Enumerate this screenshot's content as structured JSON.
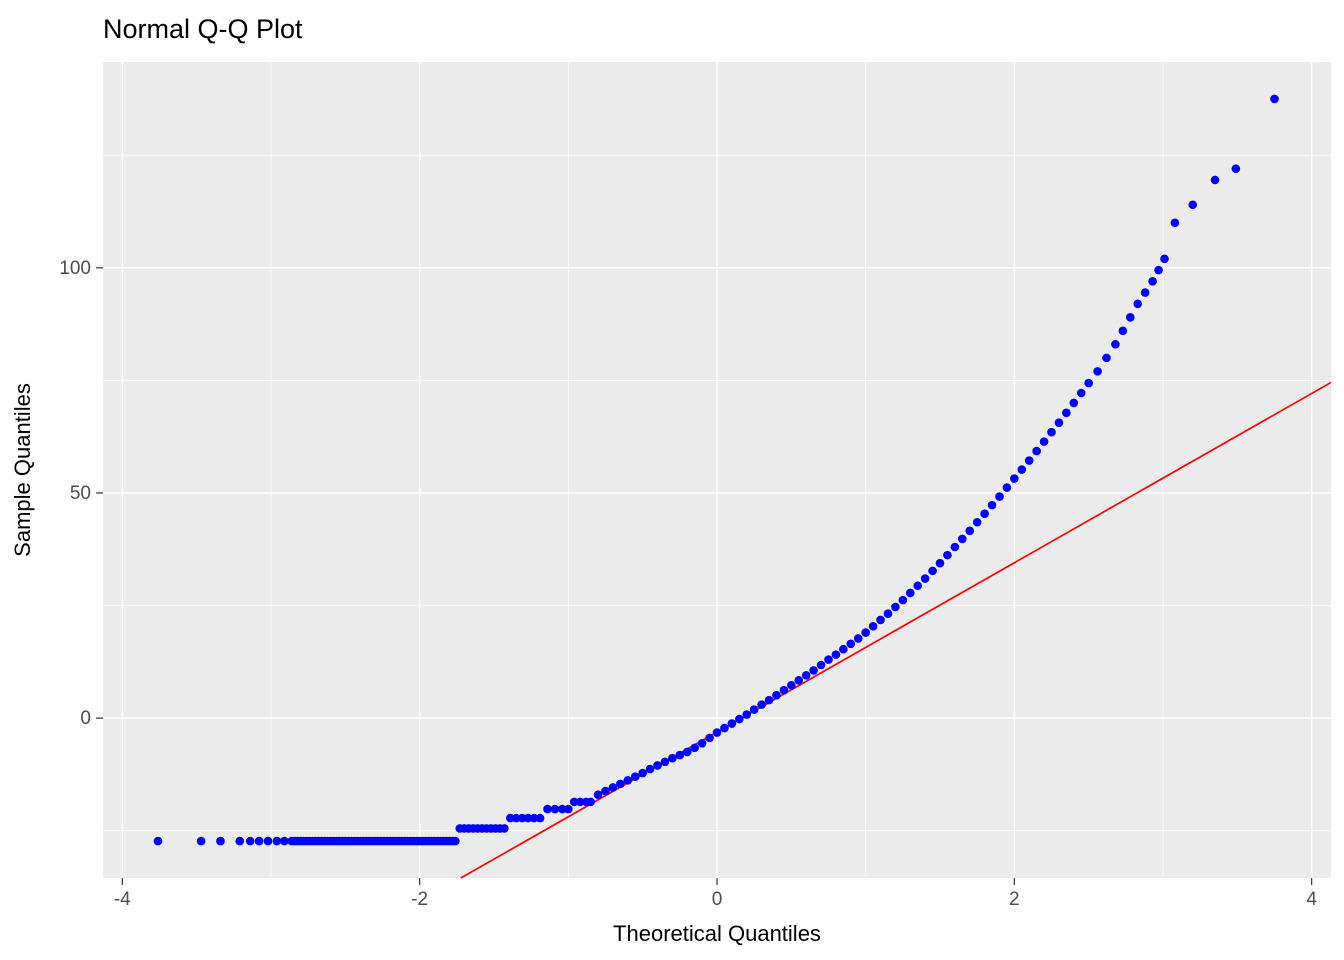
{
  "chart_data": {
    "type": "scatter",
    "title": "Normal Q-Q Plot",
    "xlabel": "Theoretical Quantiles",
    "ylabel": "Sample Quantiles",
    "xlim": [
      -4.13,
      4.13
    ],
    "ylim": [
      -35.5,
      145.7
    ],
    "x_ticks": [
      -4,
      -2,
      0,
      2,
      4
    ],
    "y_ticks": [
      0,
      50,
      100
    ],
    "x_minor_ticks": [
      -3,
      -1,
      1,
      3
    ],
    "y_minor_ticks": [
      -25,
      25,
      75,
      125
    ],
    "grid": true,
    "legend": false,
    "panel_bg": "#EBEBEB",
    "grid_color": "#FFFFFF",
    "tick_label_color": "#4D4D4D",
    "tick_mark_color": "#333333",
    "point_color": "#0000FF",
    "reference_line": {
      "type": "qqline",
      "slope": 18.8,
      "intercept": -3.1,
      "color": "#FF0000"
    },
    "points": [
      [
        -3.76,
        -27.3
      ],
      [
        -3.47,
        -27.3
      ],
      [
        -3.34,
        -27.3
      ],
      [
        -3.21,
        -27.3
      ],
      [
        -3.14,
        -27.3
      ],
      [
        -3.08,
        -27.3
      ],
      [
        -3.02,
        -27.3
      ],
      [
        -2.96,
        -27.3
      ],
      [
        -2.91,
        -27.3
      ],
      [
        -2.86,
        -27.3
      ],
      [
        -2.84,
        -27.3
      ],
      [
        -2.82,
        -27.3
      ],
      [
        -2.8,
        -27.3
      ],
      [
        -2.78,
        -27.3
      ],
      [
        -2.76,
        -27.3
      ],
      [
        -2.74,
        -27.3
      ],
      [
        -2.72,
        -27.3
      ],
      [
        -2.7,
        -27.3
      ],
      [
        -2.68,
        -27.3
      ],
      [
        -2.66,
        -27.3
      ],
      [
        -2.64,
        -27.3
      ],
      [
        -2.62,
        -27.3
      ],
      [
        -2.6,
        -27.3
      ],
      [
        -2.58,
        -27.3
      ],
      [
        -2.56,
        -27.3
      ],
      [
        -2.54,
        -27.3
      ],
      [
        -2.52,
        -27.3
      ],
      [
        -2.5,
        -27.3
      ],
      [
        -2.48,
        -27.3
      ],
      [
        -2.46,
        -27.3
      ],
      [
        -2.44,
        -27.3
      ],
      [
        -2.42,
        -27.3
      ],
      [
        -2.4,
        -27.3
      ],
      [
        -2.38,
        -27.3
      ],
      [
        -2.36,
        -27.3
      ],
      [
        -2.34,
        -27.3
      ],
      [
        -2.32,
        -27.3
      ],
      [
        -2.3,
        -27.3
      ],
      [
        -2.28,
        -27.3
      ],
      [
        -2.26,
        -27.3
      ],
      [
        -2.24,
        -27.3
      ],
      [
        -2.22,
        -27.3
      ],
      [
        -2.2,
        -27.3
      ],
      [
        -2.18,
        -27.3
      ],
      [
        -2.16,
        -27.3
      ],
      [
        -2.14,
        -27.3
      ],
      [
        -2.12,
        -27.3
      ],
      [
        -2.1,
        -27.3
      ],
      [
        -2.08,
        -27.3
      ],
      [
        -2.06,
        -27.3
      ],
      [
        -2.04,
        -27.3
      ],
      [
        -2.02,
        -27.3
      ],
      [
        -2.0,
        -27.3
      ],
      [
        -1.98,
        -27.3
      ],
      [
        -1.96,
        -27.3
      ],
      [
        -1.94,
        -27.3
      ],
      [
        -1.92,
        -27.3
      ],
      [
        -1.9,
        -27.3
      ],
      [
        -1.88,
        -27.3
      ],
      [
        -1.86,
        -27.3
      ],
      [
        -1.84,
        -27.3
      ],
      [
        -1.82,
        -27.3
      ],
      [
        -1.8,
        -27.3
      ],
      [
        -1.78,
        -27.3
      ],
      [
        -1.76,
        -27.3
      ],
      [
        -1.73,
        -24.5
      ],
      [
        -1.7,
        -24.5
      ],
      [
        -1.67,
        -24.5
      ],
      [
        -1.64,
        -24.5
      ],
      [
        -1.61,
        -24.5
      ],
      [
        -1.58,
        -24.5
      ],
      [
        -1.55,
        -24.5
      ],
      [
        -1.52,
        -24.5
      ],
      [
        -1.49,
        -24.5
      ],
      [
        -1.46,
        -24.5
      ],
      [
        -1.43,
        -24.5
      ],
      [
        -1.39,
        -22.2
      ],
      [
        -1.35,
        -22.2
      ],
      [
        -1.31,
        -22.2
      ],
      [
        -1.27,
        -22.2
      ],
      [
        -1.23,
        -22.2
      ],
      [
        -1.19,
        -22.2
      ],
      [
        -1.14,
        -20.2
      ],
      [
        -1.09,
        -20.2
      ],
      [
        -1.04,
        -20.2
      ],
      [
        -1.0,
        -20.2
      ],
      [
        -0.96,
        -18.6
      ],
      [
        -0.92,
        -18.6
      ],
      [
        -0.88,
        -18.6
      ],
      [
        -0.85,
        -18.6
      ],
      [
        -0.8,
        -17.0
      ],
      [
        -0.75,
        -16.2
      ],
      [
        -0.7,
        -15.4
      ],
      [
        -0.65,
        -14.6
      ],
      [
        -0.6,
        -13.8
      ],
      [
        -0.55,
        -13.0
      ],
      [
        -0.5,
        -12.2
      ],
      [
        -0.45,
        -11.3
      ],
      [
        -0.4,
        -10.5
      ],
      [
        -0.35,
        -9.7
      ],
      [
        -0.3,
        -8.9
      ],
      [
        -0.25,
        -8.2
      ],
      [
        -0.2,
        -7.5
      ],
      [
        -0.15,
        -6.6
      ],
      [
        -0.1,
        -5.6
      ],
      [
        -0.05,
        -4.4
      ],
      [
        0.0,
        -3.2
      ],
      [
        0.05,
        -2.2
      ],
      [
        0.1,
        -1.2
      ],
      [
        0.15,
        -0.2
      ],
      [
        0.2,
        0.8
      ],
      [
        0.25,
        1.9
      ],
      [
        0.3,
        3.0
      ],
      [
        0.35,
        4.0
      ],
      [
        0.4,
        5.1
      ],
      [
        0.45,
        6.2
      ],
      [
        0.5,
        7.3
      ],
      [
        0.55,
        8.4
      ],
      [
        0.6,
        9.5
      ],
      [
        0.65,
        10.6
      ],
      [
        0.7,
        11.8
      ],
      [
        0.75,
        13.0
      ],
      [
        0.8,
        14.1
      ],
      [
        0.85,
        15.3
      ],
      [
        0.9,
        16.5
      ],
      [
        0.95,
        17.7
      ],
      [
        1.0,
        19.0
      ],
      [
        1.05,
        20.4
      ],
      [
        1.1,
        21.8
      ],
      [
        1.15,
        23.2
      ],
      [
        1.2,
        24.7
      ],
      [
        1.25,
        26.2
      ],
      [
        1.3,
        27.8
      ],
      [
        1.35,
        29.4
      ],
      [
        1.4,
        31.0
      ],
      [
        1.45,
        32.7
      ],
      [
        1.5,
        34.4
      ],
      [
        1.55,
        36.2
      ],
      [
        1.6,
        38.0
      ],
      [
        1.65,
        39.8
      ],
      [
        1.7,
        41.6
      ],
      [
        1.75,
        43.5
      ],
      [
        1.8,
        45.4
      ],
      [
        1.85,
        47.3
      ],
      [
        1.9,
        49.2
      ],
      [
        1.95,
        51.2
      ],
      [
        2.0,
        53.2
      ],
      [
        2.05,
        55.2
      ],
      [
        2.1,
        57.2
      ],
      [
        2.15,
        59.3
      ],
      [
        2.2,
        61.4
      ],
      [
        2.25,
        63.5
      ],
      [
        2.3,
        65.6
      ],
      [
        2.35,
        67.8
      ],
      [
        2.4,
        70.0
      ],
      [
        2.45,
        72.2
      ],
      [
        2.5,
        74.4
      ],
      [
        2.56,
        77.0
      ],
      [
        2.62,
        80.0
      ],
      [
        2.68,
        83.0
      ],
      [
        2.73,
        86.0
      ],
      [
        2.78,
        89.0
      ],
      [
        2.83,
        92.0
      ],
      [
        2.88,
        94.5
      ],
      [
        2.93,
        97.0
      ],
      [
        2.97,
        99.5
      ],
      [
        3.01,
        102.0
      ],
      [
        3.08,
        110.0
      ],
      [
        3.2,
        114.0
      ],
      [
        3.35,
        119.5
      ],
      [
        3.49,
        122.0
      ],
      [
        3.75,
        137.5
      ]
    ]
  }
}
